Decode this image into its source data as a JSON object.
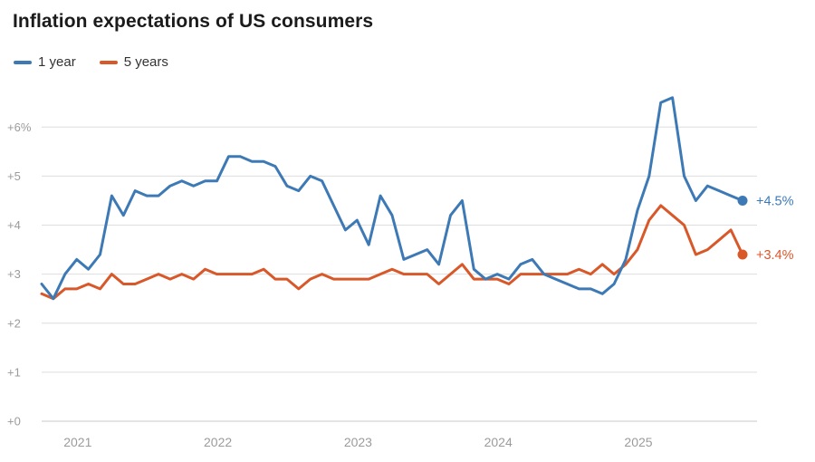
{
  "title": "Inflation expectations of US consumers",
  "chart_data": {
    "type": "line",
    "title": "Inflation expectations of US consumers",
    "x_start": "2020-11",
    "x_frequency": "monthly",
    "x_tick_labels": [
      "2021",
      "2022",
      "2023",
      "2024",
      "2025"
    ],
    "x_tick_indices": [
      2,
      14,
      26,
      38,
      50
    ],
    "y_ticks": [
      0,
      1,
      2,
      3,
      4,
      5,
      6
    ],
    "y_tick_labels": [
      "+0",
      "+1",
      "+2",
      "+3",
      "+4",
      "+5",
      "+6%"
    ],
    "ylim": [
      0,
      6.8
    ],
    "grid": "horizontal",
    "legend_position": "top-left",
    "colors": {
      "one_year": "#3d7ab5",
      "five_years": "#d8582a",
      "axis_text": "#9b9b9b",
      "gridline": "#dedede"
    },
    "series": [
      {
        "name": "1 year",
        "color": "#3d7ab5",
        "end_label": "+4.5%",
        "values": [
          2.8,
          2.5,
          3.0,
          3.3,
          3.1,
          3.4,
          4.6,
          4.2,
          4.7,
          4.6,
          4.6,
          4.8,
          4.9,
          4.8,
          4.9,
          4.9,
          5.4,
          5.4,
          5.3,
          5.3,
          5.2,
          4.8,
          4.7,
          5.0,
          4.9,
          4.4,
          3.9,
          4.1,
          3.6,
          4.6,
          4.2,
          3.3,
          3.4,
          3.5,
          3.2,
          4.2,
          4.5,
          3.1,
          2.9,
          3.0,
          2.9,
          3.2,
          3.3,
          3.0,
          2.9,
          2.8,
          2.7,
          2.7,
          2.6,
          2.8,
          3.3,
          4.3,
          5.0,
          6.5,
          6.6,
          5.0,
          4.5,
          4.8,
          4.7,
          4.6,
          4.5
        ]
      },
      {
        "name": "5 years",
        "color": "#d8582a",
        "end_label": "+3.4%",
        "values": [
          2.6,
          2.5,
          2.7,
          2.7,
          2.8,
          2.7,
          3.0,
          2.8,
          2.8,
          2.9,
          3.0,
          2.9,
          3.0,
          2.9,
          3.1,
          3.0,
          3.0,
          3.0,
          3.0,
          3.1,
          2.9,
          2.9,
          2.7,
          2.9,
          3.0,
          2.9,
          2.9,
          2.9,
          2.9,
          3.0,
          3.1,
          3.0,
          3.0,
          3.0,
          2.8,
          3.0,
          3.2,
          2.9,
          2.9,
          2.9,
          2.8,
          3.0,
          3.0,
          3.0,
          3.0,
          3.0,
          3.1,
          3.0,
          3.2,
          3.0,
          3.2,
          3.5,
          4.1,
          4.4,
          4.2,
          4.0,
          3.4,
          3.5,
          3.7,
          3.9,
          3.4
        ]
      }
    ]
  }
}
